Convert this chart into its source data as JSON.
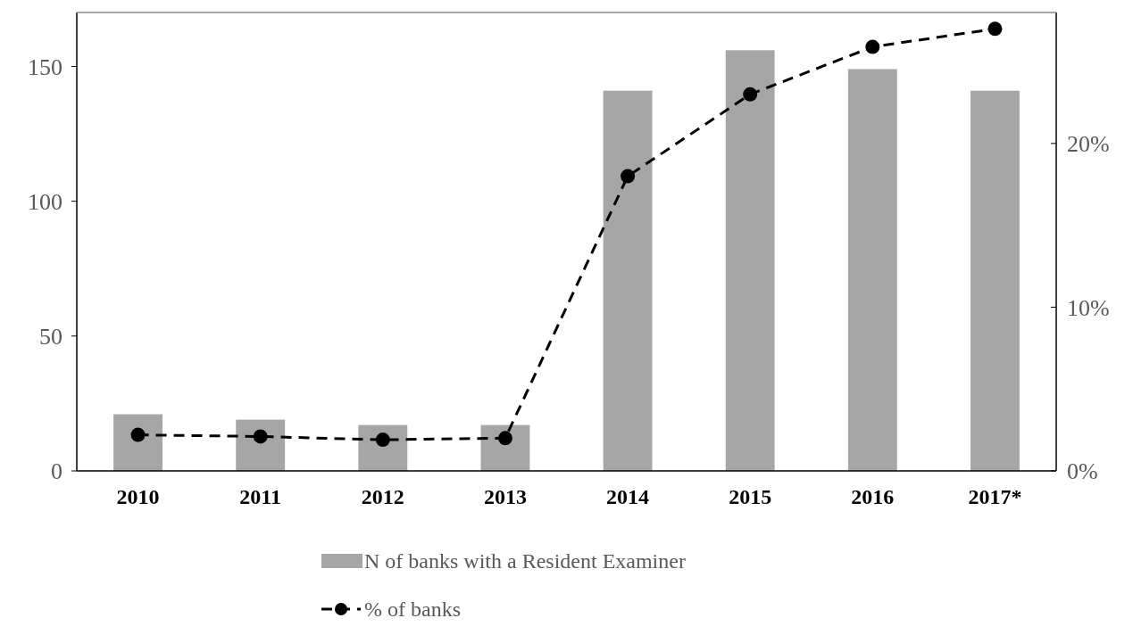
{
  "chart_data": {
    "type": "bar",
    "categories": [
      "2010",
      "2011",
      "2012",
      "2013",
      "2014",
      "2015",
      "2016",
      "2017*"
    ],
    "series": [
      {
        "name": "N of banks with a Resident Examiner",
        "color": "#a6a6a6",
        "values": [
          21,
          19,
          17,
          17,
          141,
          156,
          149,
          141
        ]
      },
      {
        "name": "% of banks",
        "type": "line",
        "axis": "y2",
        "color": "#000000",
        "marker": "circle",
        "line_style": "dashed",
        "values": [
          2.2,
          2.1,
          1.9,
          2.0,
          18.0,
          23.0,
          25.9,
          27.0
        ]
      }
    ],
    "ylim": [
      0,
      170
    ],
    "yticks": [
      0,
      50,
      100,
      150
    ],
    "y2lim": [
      0,
      28
    ],
    "y2ticks": [
      {
        "value": 0,
        "label": "0%"
      },
      {
        "value": 10,
        "label": "10%"
      },
      {
        "value": 20,
        "label": "20%"
      }
    ],
    "legend": "bottom",
    "grid": false
  }
}
